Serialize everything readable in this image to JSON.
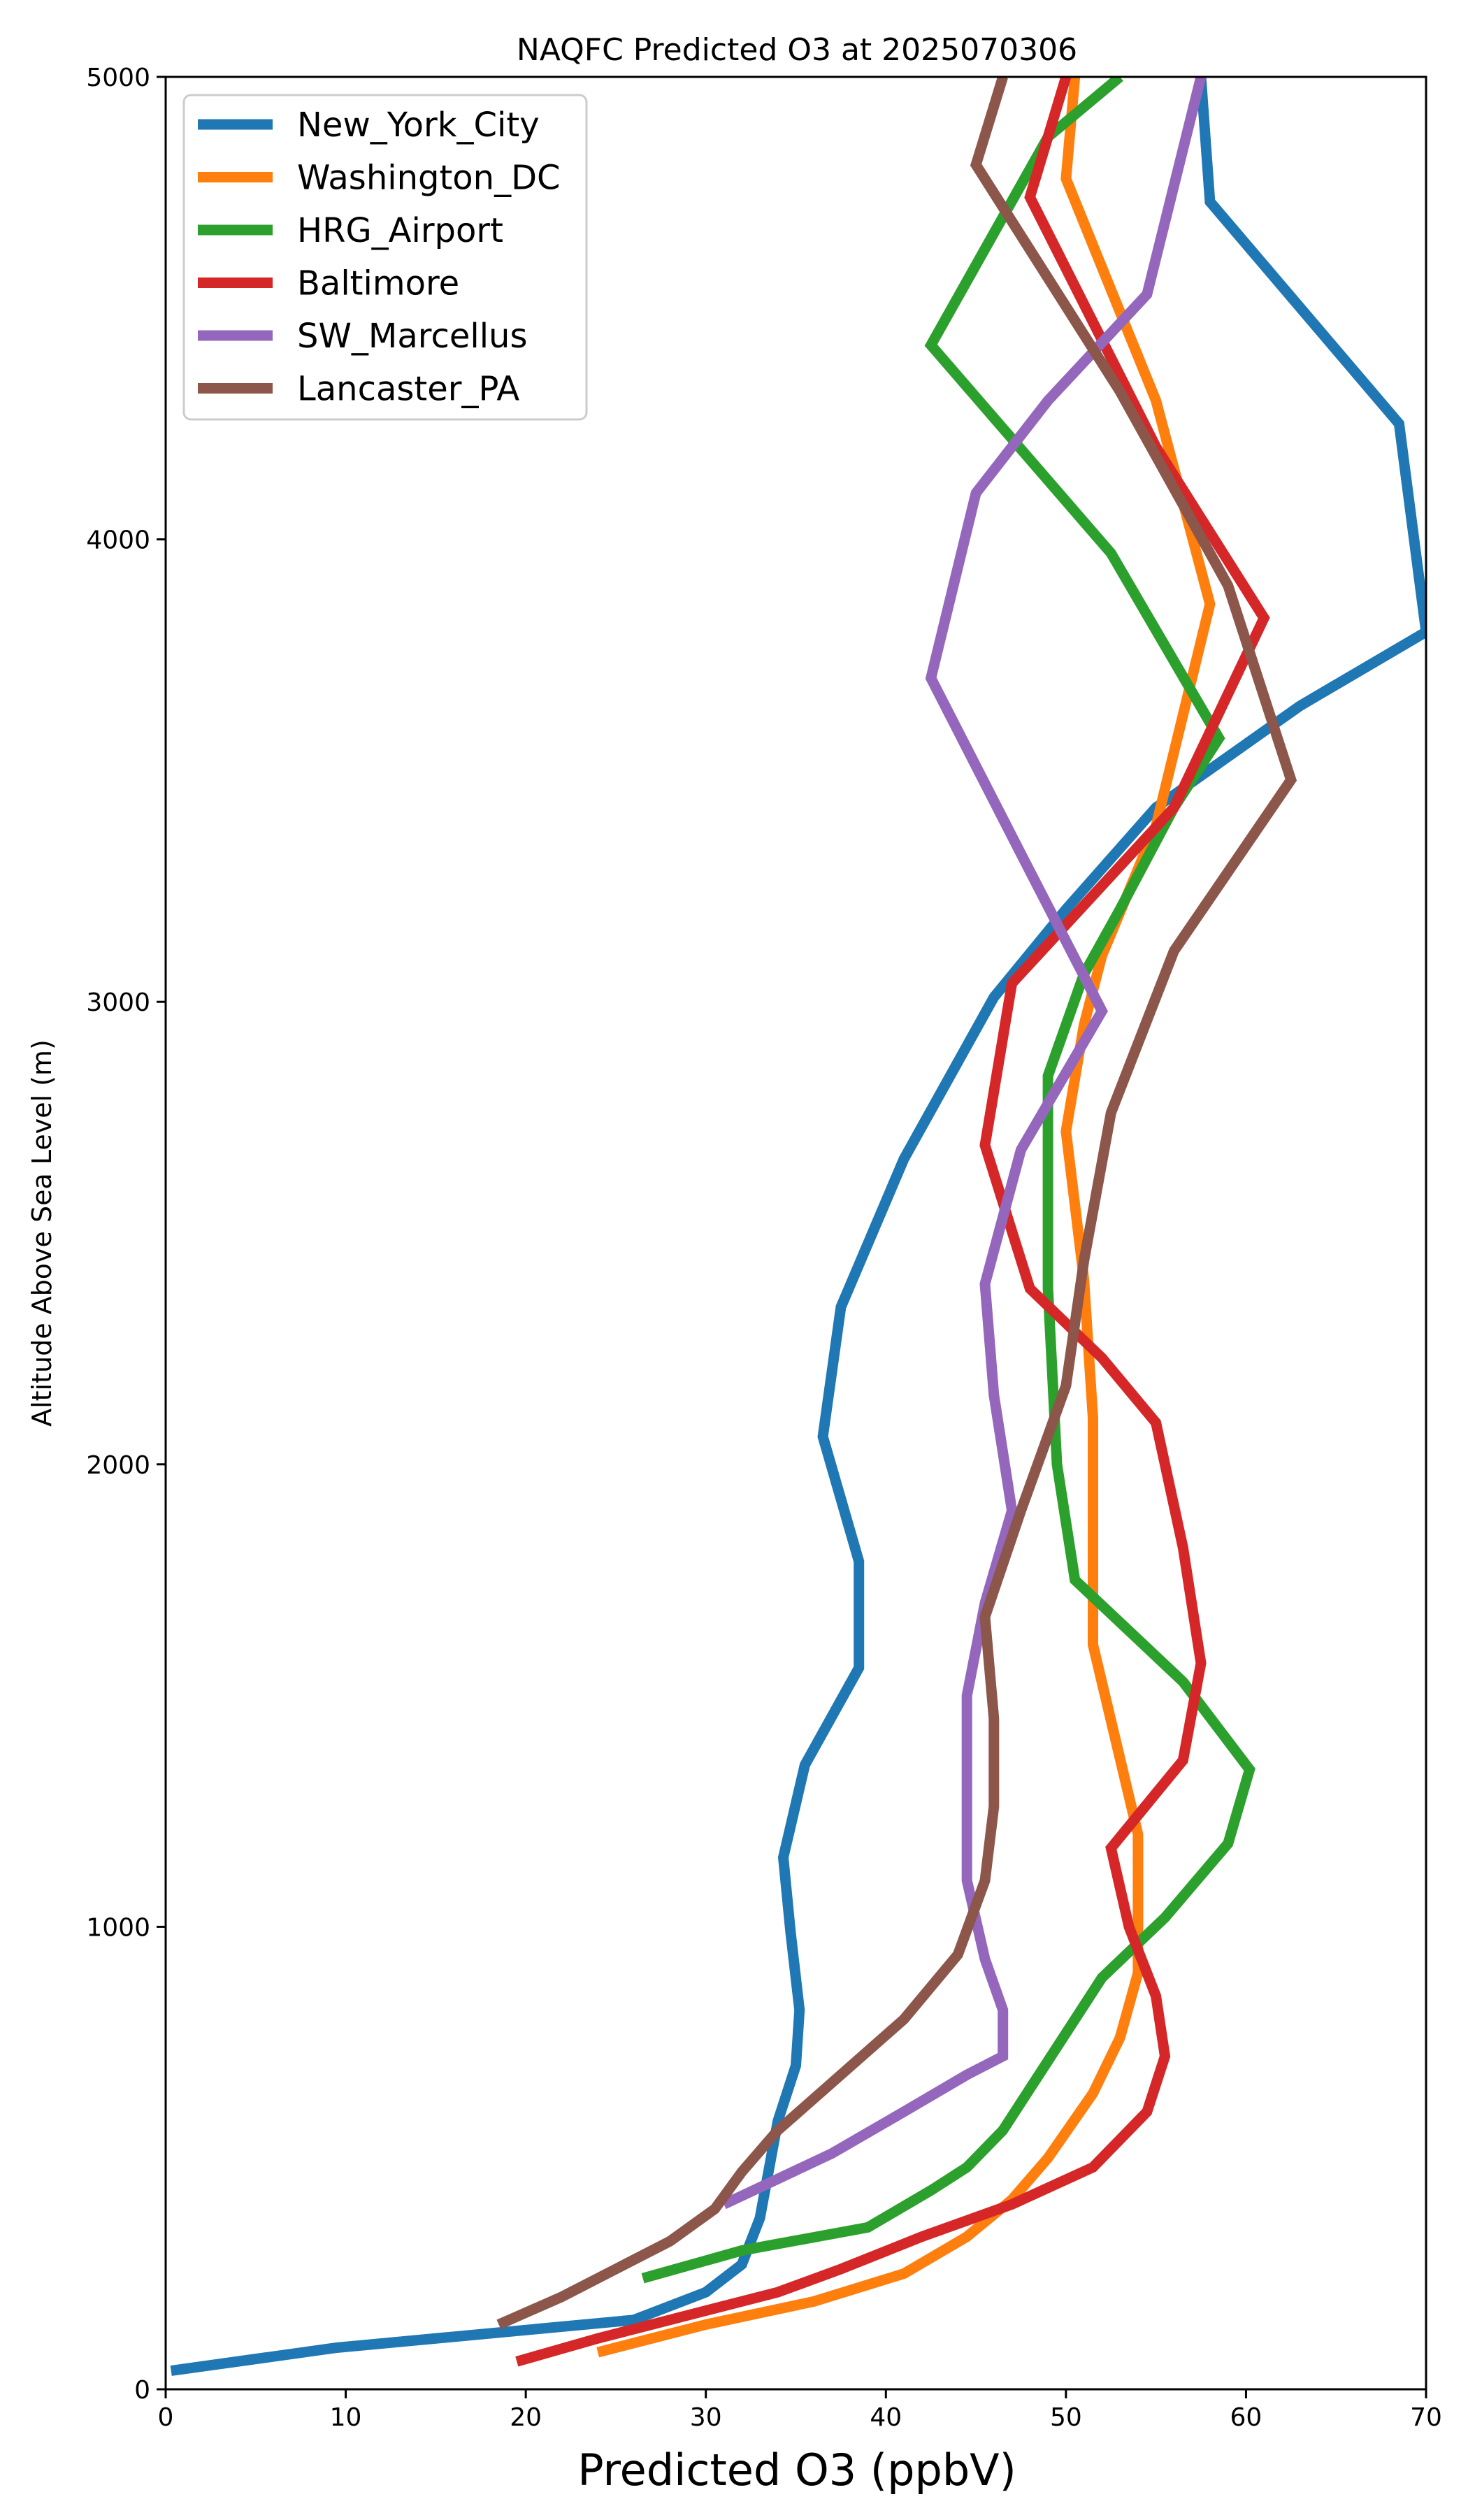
{
  "chart_data": {
    "type": "line",
    "title": "NAQFC Predicted O3 at 2025070306",
    "xlabel": "Predicted O3 (ppbV)",
    "ylabel": "Altitude Above Sea Level (m)",
    "xlim": [
      0,
      70
    ],
    "ylim": [
      0,
      5000
    ],
    "xticks": [
      0,
      10,
      20,
      30,
      40,
      50,
      60,
      70
    ],
    "yticks": [
      0,
      1000,
      2000,
      3000,
      4000,
      5000
    ],
    "grid": false,
    "legend": {
      "placement": "upper-left"
    },
    "series": [
      {
        "name": "New_York_City",
        "color": "#1f77b4",
        "points": [
          [
            0.3,
            40
          ],
          [
            9.5,
            90
          ],
          [
            26,
            150
          ],
          [
            30,
            210
          ],
          [
            32,
            270
          ],
          [
            33,
            370
          ],
          [
            34,
            580
          ],
          [
            35,
            700
          ],
          [
            35.2,
            820
          ],
          [
            34.7,
            990
          ],
          [
            34.3,
            1150
          ],
          [
            35.5,
            1350
          ],
          [
            38.5,
            1560
          ],
          [
            38.5,
            1790
          ],
          [
            36.5,
            2060
          ],
          [
            37.5,
            2340
          ],
          [
            41,
            2660
          ],
          [
            46,
            3010
          ],
          [
            50,
            3200
          ],
          [
            55,
            3420
          ],
          [
            63,
            3640
          ],
          [
            70,
            3800
          ],
          [
            68.5,
            4250
          ],
          [
            58,
            4730
          ],
          [
            57.5,
            5000
          ]
        ]
      },
      {
        "name": "Washington_DC",
        "color": "#ff7f0e",
        "points": [
          [
            24,
            80
          ],
          [
            30,
            140
          ],
          [
            36,
            190
          ],
          [
            41,
            250
          ],
          [
            44.5,
            330
          ],
          [
            47,
            410
          ],
          [
            49,
            500
          ],
          [
            51.5,
            640
          ],
          [
            53,
            760
          ],
          [
            54,
            900
          ],
          [
            54,
            1050
          ],
          [
            54,
            1200
          ],
          [
            51.5,
            1610
          ],
          [
            51.5,
            1850
          ],
          [
            51.5,
            2100
          ],
          [
            51,
            2400
          ],
          [
            50,
            2720
          ],
          [
            51,
            2950
          ],
          [
            52,
            3100
          ],
          [
            55,
            3380
          ],
          [
            58,
            3860
          ],
          [
            55,
            4300
          ],
          [
            50,
            4780
          ],
          [
            50.5,
            5000
          ]
        ]
      },
      {
        "name": "HRG_Airport",
        "color": "#2ca02c",
        "points": [
          [
            26.5,
            240
          ],
          [
            32,
            300
          ],
          [
            39,
            350
          ],
          [
            42.5,
            430
          ],
          [
            44.5,
            480
          ],
          [
            46.5,
            560
          ],
          [
            48,
            650
          ],
          [
            50,
            770
          ],
          [
            52,
            890
          ],
          [
            55.5,
            1020
          ],
          [
            59,
            1180
          ],
          [
            60.2,
            1340
          ],
          [
            56.5,
            1530
          ],
          [
            50.5,
            1750
          ],
          [
            49.5,
            2000
          ],
          [
            49,
            2380
          ],
          [
            49,
            2840
          ],
          [
            51,
            3060
          ],
          [
            53,
            3200
          ],
          [
            56,
            3420
          ],
          [
            58.5,
            3570
          ],
          [
            52.5,
            3970
          ],
          [
            42.5,
            4420
          ],
          [
            49,
            4870
          ],
          [
            53,
            5000
          ]
        ]
      },
      {
        "name": "Baltimore",
        "color": "#d62728",
        "points": [
          [
            19.5,
            60
          ],
          [
            24,
            110
          ],
          [
            29,
            160
          ],
          [
            34,
            210
          ],
          [
            37.5,
            260
          ],
          [
            42,
            330
          ],
          [
            47,
            400
          ],
          [
            51.5,
            480
          ],
          [
            54.5,
            600
          ],
          [
            55.5,
            720
          ],
          [
            55,
            850
          ],
          [
            53.5,
            1000
          ],
          [
            52.5,
            1170
          ],
          [
            56.5,
            1360
          ],
          [
            57.5,
            1570
          ],
          [
            56.5,
            1820
          ],
          [
            55,
            2090
          ],
          [
            52,
            2230
          ],
          [
            48,
            2380
          ],
          [
            45.5,
            2690
          ],
          [
            47,
            3040
          ],
          [
            56,
            3420
          ],
          [
            61,
            3830
          ],
          [
            55,
            4200
          ],
          [
            48,
            4740
          ],
          [
            50,
            5000
          ]
        ]
      },
      {
        "name": "SW_Marcellus",
        "color": "#9467bd",
        "points": [
          [
            31,
            400
          ],
          [
            37,
            510
          ],
          [
            41,
            600
          ],
          [
            44.5,
            680
          ],
          [
            46.5,
            720
          ],
          [
            46.5,
            820
          ],
          [
            45.5,
            930
          ],
          [
            44.5,
            1100
          ],
          [
            44.5,
            1320
          ],
          [
            44.5,
            1500
          ],
          [
            45.5,
            1700
          ],
          [
            47,
            1900
          ],
          [
            46,
            2150
          ],
          [
            45.5,
            2390
          ],
          [
            47.5,
            2680
          ],
          [
            52,
            2980
          ],
          [
            47.5,
            3320
          ],
          [
            42.5,
            3700
          ],
          [
            45,
            4100
          ],
          [
            49,
            4300
          ],
          [
            54.5,
            4530
          ],
          [
            57.5,
            5000
          ]
        ]
      },
      {
        "name": "Lancaster_PA",
        "color": "#8c564b",
        "points": [
          [
            18.5,
            140
          ],
          [
            22,
            200
          ],
          [
            25,
            260
          ],
          [
            28,
            320
          ],
          [
            30.5,
            390
          ],
          [
            32,
            470
          ],
          [
            34,
            560
          ],
          [
            37.5,
            680
          ],
          [
            41,
            800
          ],
          [
            44,
            940
          ],
          [
            45.5,
            1100
          ],
          [
            46,
            1260
          ],
          [
            46,
            1450
          ],
          [
            45.5,
            1670
          ],
          [
            47.5,
            1900
          ],
          [
            50,
            2170
          ],
          [
            51,
            2440
          ],
          [
            52.5,
            2760
          ],
          [
            56,
            3110
          ],
          [
            62.5,
            3480
          ],
          [
            59,
            3900
          ],
          [
            53,
            4320
          ],
          [
            45,
            4810
          ],
          [
            46.5,
            5000
          ]
        ]
      }
    ]
  }
}
